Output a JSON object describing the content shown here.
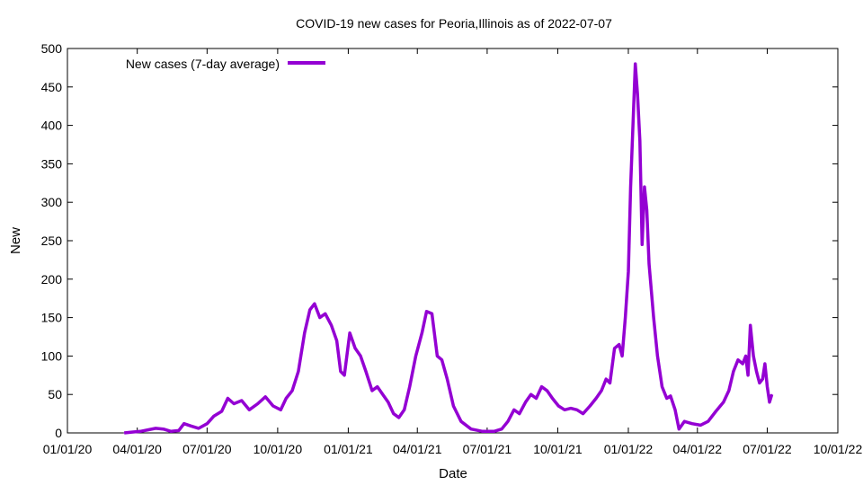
{
  "chart_data": {
    "type": "line",
    "title": "COVID-19 new cases for Peoria,Illinois as of 2022-07-07",
    "xlabel": "Date",
    "ylabel": "New",
    "xlim": [
      "2020-01-01",
      "2022-10-01"
    ],
    "ylim": [
      0,
      500
    ],
    "x_ticks": [
      "01/01/20",
      "04/01/20",
      "07/01/20",
      "10/01/20",
      "01/01/21",
      "04/01/21",
      "07/01/21",
      "10/01/21",
      "01/01/22",
      "04/01/22",
      "07/01/22",
      "10/01/22"
    ],
    "y_ticks": [
      0,
      50,
      100,
      150,
      200,
      250,
      300,
      350,
      400,
      450,
      500
    ],
    "legend_position": "top-left",
    "grid": false,
    "series": [
      {
        "name": "New cases (7-day average)",
        "color": "#9400d3",
        "points": [
          [
            "2020-03-15",
            0
          ],
          [
            "2020-03-25",
            1
          ],
          [
            "2020-04-05",
            2
          ],
          [
            "2020-04-15",
            4
          ],
          [
            "2020-04-25",
            6
          ],
          [
            "2020-05-05",
            5
          ],
          [
            "2020-05-15",
            2
          ],
          [
            "2020-05-25",
            3
          ],
          [
            "2020-06-01",
            12
          ],
          [
            "2020-06-10",
            9
          ],
          [
            "2020-06-20",
            6
          ],
          [
            "2020-07-01",
            12
          ],
          [
            "2020-07-10",
            22
          ],
          [
            "2020-07-20",
            28
          ],
          [
            "2020-07-28",
            45
          ],
          [
            "2020-08-05",
            38
          ],
          [
            "2020-08-15",
            42
          ],
          [
            "2020-08-25",
            30
          ],
          [
            "2020-09-05",
            38
          ],
          [
            "2020-09-15",
            47
          ],
          [
            "2020-09-25",
            35
          ],
          [
            "2020-10-05",
            30
          ],
          [
            "2020-10-12",
            45
          ],
          [
            "2020-10-20",
            55
          ],
          [
            "2020-10-28",
            80
          ],
          [
            "2020-11-05",
            130
          ],
          [
            "2020-11-12",
            160
          ],
          [
            "2020-11-18",
            168
          ],
          [
            "2020-11-25",
            150
          ],
          [
            "2020-12-02",
            155
          ],
          [
            "2020-12-10",
            140
          ],
          [
            "2020-12-17",
            120
          ],
          [
            "2020-12-22",
            80
          ],
          [
            "2020-12-27",
            75
          ],
          [
            "2021-01-03",
            130
          ],
          [
            "2021-01-10",
            110
          ],
          [
            "2021-01-17",
            100
          ],
          [
            "2021-01-24",
            80
          ],
          [
            "2021-02-01",
            55
          ],
          [
            "2021-02-08",
            60
          ],
          [
            "2021-02-15",
            50
          ],
          [
            "2021-02-22",
            40
          ],
          [
            "2021-03-01",
            25
          ],
          [
            "2021-03-08",
            20
          ],
          [
            "2021-03-15",
            30
          ],
          [
            "2021-03-22",
            60
          ],
          [
            "2021-03-30",
            100
          ],
          [
            "2021-04-07",
            130
          ],
          [
            "2021-04-13",
            158
          ],
          [
            "2021-04-20",
            155
          ],
          [
            "2021-04-27",
            100
          ],
          [
            "2021-05-03",
            95
          ],
          [
            "2021-05-10",
            70
          ],
          [
            "2021-05-18",
            35
          ],
          [
            "2021-05-28",
            15
          ],
          [
            "2021-06-10",
            5
          ],
          [
            "2021-06-25",
            2
          ],
          [
            "2021-07-10",
            2
          ],
          [
            "2021-07-20",
            5
          ],
          [
            "2021-07-28",
            15
          ],
          [
            "2021-08-05",
            30
          ],
          [
            "2021-08-12",
            25
          ],
          [
            "2021-08-20",
            40
          ],
          [
            "2021-08-27",
            50
          ],
          [
            "2021-09-03",
            45
          ],
          [
            "2021-09-10",
            60
          ],
          [
            "2021-09-17",
            55
          ],
          [
            "2021-09-24",
            45
          ],
          [
            "2021-10-02",
            35
          ],
          [
            "2021-10-10",
            30
          ],
          [
            "2021-10-18",
            32
          ],
          [
            "2021-10-26",
            30
          ],
          [
            "2021-11-03",
            25
          ],
          [
            "2021-11-12",
            35
          ],
          [
            "2021-11-20",
            45
          ],
          [
            "2021-11-27",
            55
          ],
          [
            "2021-12-03",
            70
          ],
          [
            "2021-12-08",
            65
          ],
          [
            "2021-12-14",
            110
          ],
          [
            "2021-12-20",
            115
          ],
          [
            "2021-12-24",
            100
          ],
          [
            "2021-12-28",
            150
          ],
          [
            "2022-01-01",
            210
          ],
          [
            "2022-01-04",
            320
          ],
          [
            "2022-01-07",
            400
          ],
          [
            "2022-01-10",
            480
          ],
          [
            "2022-01-13",
            440
          ],
          [
            "2022-01-16",
            380
          ],
          [
            "2022-01-19",
            245
          ],
          [
            "2022-01-22",
            320
          ],
          [
            "2022-01-25",
            290
          ],
          [
            "2022-01-28",
            220
          ],
          [
            "2022-02-03",
            150
          ],
          [
            "2022-02-08",
            100
          ],
          [
            "2022-02-14",
            60
          ],
          [
            "2022-02-20",
            45
          ],
          [
            "2022-02-25",
            48
          ],
          [
            "2022-03-03",
            30
          ],
          [
            "2022-03-08",
            5
          ],
          [
            "2022-03-15",
            15
          ],
          [
            "2022-03-25",
            12
          ],
          [
            "2022-04-05",
            10
          ],
          [
            "2022-04-15",
            15
          ],
          [
            "2022-04-25",
            28
          ],
          [
            "2022-05-05",
            40
          ],
          [
            "2022-05-12",
            55
          ],
          [
            "2022-05-18",
            80
          ],
          [
            "2022-05-24",
            95
          ],
          [
            "2022-05-30",
            90
          ],
          [
            "2022-06-03",
            100
          ],
          [
            "2022-06-06",
            75
          ],
          [
            "2022-06-09",
            140
          ],
          [
            "2022-06-13",
            100
          ],
          [
            "2022-06-17",
            80
          ],
          [
            "2022-06-21",
            65
          ],
          [
            "2022-06-25",
            70
          ],
          [
            "2022-06-28",
            90
          ],
          [
            "2022-07-01",
            60
          ],
          [
            "2022-07-04",
            40
          ],
          [
            "2022-07-07",
            50
          ]
        ]
      }
    ]
  }
}
